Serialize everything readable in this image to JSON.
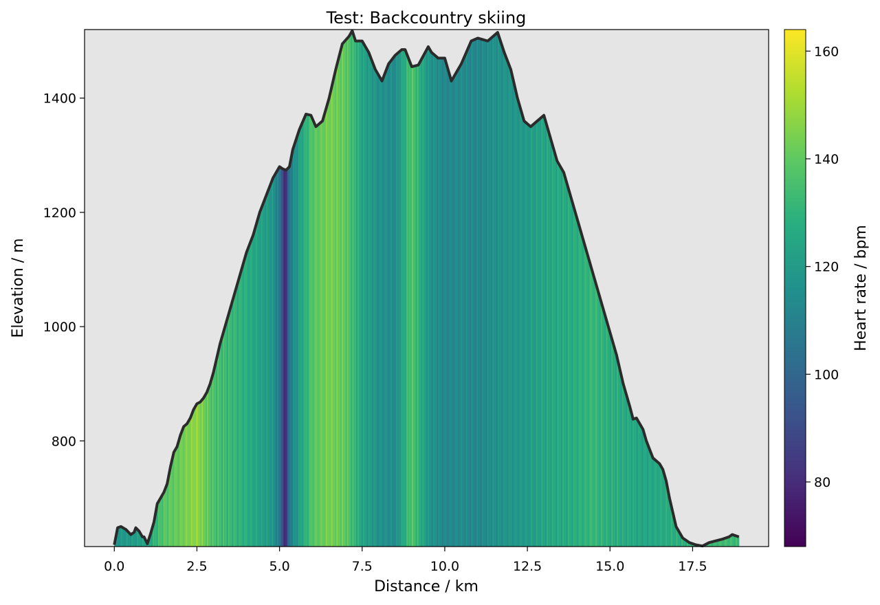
{
  "chart_data": {
    "type": "area",
    "title": "Test: Backcountry skiing",
    "xlabel": "Distance / km",
    "ylabel": "Elevation / m",
    "colorbar_label": "Heart rate / bpm",
    "colormap": "viridis",
    "xlim": [
      -0.9,
      19.8
    ],
    "ylim": [
      615,
      1520
    ],
    "clim": [
      68,
      164
    ],
    "x_ticks": [
      0.0,
      2.5,
      5.0,
      7.5,
      10.0,
      12.5,
      15.0,
      17.5
    ],
    "x_tick_labels": [
      "0.0",
      "2.5",
      "5.0",
      "7.5",
      "10.0",
      "12.5",
      "15.0",
      "17.5"
    ],
    "y_ticks": [
      800,
      1000,
      1200,
      1400
    ],
    "y_tick_labels": [
      "800",
      "1000",
      "1200",
      "1400"
    ],
    "c_ticks": [
      80,
      100,
      120,
      140,
      160
    ],
    "c_tick_labels": [
      "80",
      "100",
      "120",
      "140",
      "160"
    ],
    "background_color": "#e5e5e5",
    "line_color": "#2b2b2b",
    "elevation_profile": {
      "x": [
        0.0,
        0.1,
        0.2,
        0.35,
        0.5,
        0.6,
        0.65,
        0.75,
        0.85,
        0.9,
        1.0,
        1.1,
        1.2,
        1.3,
        1.4,
        1.5,
        1.6,
        1.7,
        1.8,
        1.9,
        2.0,
        2.1,
        2.2,
        2.3,
        2.4,
        2.5,
        2.6,
        2.7,
        2.8,
        2.9,
        3.0,
        3.2,
        3.4,
        3.6,
        3.8,
        4.0,
        4.2,
        4.4,
        4.6,
        4.8,
        5.0,
        5.1,
        5.2,
        5.3,
        5.4,
        5.6,
        5.8,
        5.95,
        6.1,
        6.3,
        6.5,
        6.7,
        6.9,
        7.1,
        7.2,
        7.3,
        7.5,
        7.7,
        7.9,
        8.1,
        8.3,
        8.5,
        8.7,
        8.8,
        9.0,
        9.2,
        9.5,
        9.6,
        9.8,
        10.0,
        10.2,
        10.5,
        10.8,
        11.0,
        11.3,
        11.5,
        11.6,
        11.8,
        12.0,
        12.2,
        12.4,
        12.6,
        12.8,
        13.0,
        13.2,
        13.4,
        13.6,
        13.8,
        14.0,
        14.2,
        14.4,
        14.6,
        14.8,
        15.0,
        15.2,
        15.4,
        15.6,
        15.7,
        15.8,
        16.0,
        16.1,
        16.3,
        16.5,
        16.6,
        16.7,
        16.8,
        17.0,
        17.2,
        17.4,
        17.6,
        17.8,
        18.0,
        18.2,
        18.4,
        18.6,
        18.7,
        18.9
      ],
      "y": [
        618,
        648,
        650,
        645,
        636,
        640,
        648,
        642,
        632,
        632,
        620,
        638,
        658,
        690,
        700,
        710,
        725,
        755,
        780,
        790,
        810,
        825,
        830,
        840,
        855,
        865,
        868,
        875,
        885,
        900,
        920,
        970,
        1010,
        1050,
        1090,
        1130,
        1160,
        1200,
        1230,
        1260,
        1280,
        1276,
        1274,
        1280,
        1310,
        1345,
        1372,
        1370,
        1350,
        1360,
        1400,
        1450,
        1495,
        1508,
        1518,
        1500,
        1500,
        1480,
        1450,
        1430,
        1460,
        1475,
        1485,
        1485,
        1455,
        1458,
        1490,
        1480,
        1470,
        1470,
        1430,
        1460,
        1500,
        1505,
        1500,
        1510,
        1515,
        1480,
        1450,
        1400,
        1360,
        1350,
        1360,
        1370,
        1330,
        1290,
        1270,
        1230,
        1190,
        1150,
        1110,
        1070,
        1030,
        990,
        950,
        900,
        860,
        838,
        840,
        820,
        800,
        770,
        760,
        750,
        730,
        700,
        650,
        630,
        622,
        618,
        616,
        622,
        625,
        628,
        632,
        636,
        632
      ]
    },
    "heart_rate": {
      "x": [
        0.0,
        0.5,
        1.0,
        1.5,
        2.0,
        2.5,
        3.0,
        3.5,
        4.0,
        4.5,
        4.8,
        5.05,
        5.15,
        5.25,
        5.35,
        5.6,
        6.0,
        6.5,
        7.0,
        7.5,
        8.0,
        8.5,
        9.0,
        9.5,
        10.0,
        10.5,
        11.0,
        11.5,
        12.0,
        12.5,
        13.0,
        13.5,
        14.0,
        14.5,
        15.0,
        15.5,
        16.0,
        16.5,
        17.0,
        17.5,
        18.0,
        18.5,
        18.9
      ],
      "bpm": [
        118,
        120,
        124,
        138,
        142,
        148,
        136,
        132,
        128,
        122,
        118,
        102,
        72,
        96,
        110,
        122,
        138,
        144,
        140,
        124,
        116,
        114,
        138,
        118,
        112,
        114,
        112,
        116,
        118,
        120,
        124,
        126,
        128,
        132,
        128,
        126,
        124,
        126,
        128,
        130,
        132,
        134,
        132
      ]
    }
  }
}
